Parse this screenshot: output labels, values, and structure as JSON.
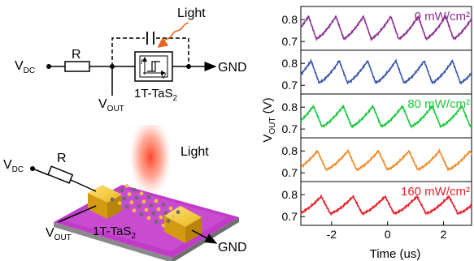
{
  "circuit": {
    "vdc": "V",
    "vdc_sub": "DC",
    "resistor": "R",
    "light": "Light",
    "vout": "V",
    "vout_sub": "OUT",
    "device": "1T-TaS",
    "device_sub": "2",
    "gnd": "GND",
    "iv_i": "I",
    "iv_v": "V"
  },
  "device3d": {
    "vdc": "V",
    "vdc_sub": "DC",
    "resistor": "R",
    "light": "Light",
    "vout": "V",
    "vout_sub": "OUT",
    "material": "1T-TaS",
    "material_sub": "2",
    "gnd": "GND"
  },
  "chart_data": {
    "type": "line",
    "xlabel": "Time (us)",
    "ylabel": "V",
    "ylabel_sub": "OUT",
    "ylabel_unit": " (V)",
    "xlim": [
      -3.1,
      3.0
    ],
    "xticks": [
      -2,
      0,
      2
    ],
    "xtick_labels": [
      "-2",
      "0",
      "2"
    ],
    "panels": [
      {
        "label": "0 mW/cm²",
        "color": "#8b2f91",
        "period": 0.98,
        "phase": -2.55,
        "min": 0.713,
        "max": 0.815
      },
      {
        "label": "",
        "color": "#3b56a8",
        "period": 1.01,
        "phase": -2.45,
        "min": 0.712,
        "max": 0.812
      },
      {
        "label": "80 mW/cm²",
        "color": "#16c93a",
        "period": 1.06,
        "phase": -2.35,
        "min": 0.712,
        "max": 0.805
      },
      {
        "label": "",
        "color": "#f08a26",
        "period": 1.09,
        "phase": -2.2,
        "min": 0.715,
        "max": 0.8
      },
      {
        "label": "160 mW/cm²",
        "color": "#e81f2a",
        "period": 1.14,
        "phase": -2.05,
        "min": 0.714,
        "max": 0.792
      }
    ],
    "yticks": [
      0.7,
      0.8
    ],
    "ytick_labels": [
      "0.7",
      "0.8"
    ],
    "ylim": [
      0.66,
      0.86
    ]
  }
}
